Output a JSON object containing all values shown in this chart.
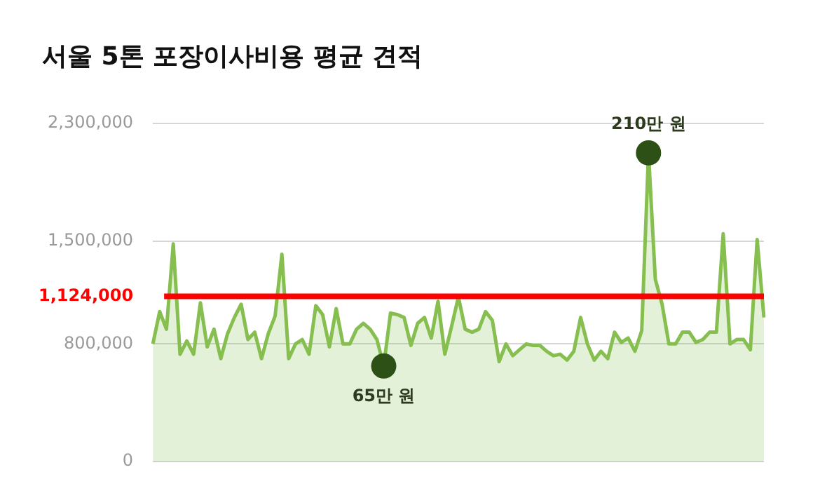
{
  "chart_data": {
    "type": "area",
    "title": "서울 5톤 포장이사비용 평균 견적",
    "categories": [
      null,
      null,
      null,
      null,
      null,
      null,
      null,
      null,
      null,
      null,
      null,
      null,
      null,
      null,
      null,
      null,
      null,
      null,
      null,
      null,
      null,
      null,
      null,
      null,
      null,
      null,
      null,
      null,
      null,
      null,
      null,
      null,
      null,
      null,
      null,
      null,
      null,
      null,
      null,
      null,
      null,
      null,
      null,
      null,
      null,
      null,
      null,
      null,
      null,
      null,
      null,
      null,
      null,
      null,
      null,
      null,
      null,
      null,
      null,
      null,
      null,
      null,
      null,
      null,
      null,
      null,
      null,
      null,
      null,
      null,
      null,
      null,
      null,
      null,
      null,
      null,
      null,
      null,
      null,
      null,
      null,
      null,
      null,
      null,
      null,
      null,
      null,
      null,
      null,
      null,
      null
    ],
    "series": [
      {
        "color": "#86bf50",
        "values": [
          800000,
          1020000,
          900000,
          1480000,
          730000,
          820000,
          730000,
          1080000,
          780000,
          900000,
          700000,
          870000,
          980000,
          1070000,
          830000,
          880000,
          700000,
          870000,
          990000,
          1410000,
          700000,
          800000,
          830000,
          730000,
          1060000,
          1000000,
          780000,
          1040000,
          800000,
          800000,
          900000,
          940000,
          900000,
          830000,
          650000,
          1010000,
          1000000,
          980000,
          790000,
          940000,
          980000,
          840000,
          1090000,
          730000,
          920000,
          1120000,
          900000,
          880000,
          900000,
          1020000,
          960000,
          680000,
          800000,
          720000,
          760000,
          800000,
          790000,
          790000,
          750000,
          720000,
          730000,
          690000,
          750000,
          980000,
          800000,
          690000,
          750000,
          700000,
          880000,
          810000,
          840000,
          750000,
          890000,
          2100000,
          1240000,
          1070000,
          800000,
          800000,
          880000,
          880000,
          810000,
          830000,
          880000,
          880000,
          1550000,
          800000,
          830000,
          830000,
          760000,
          1510000,
          980000
        ]
      }
    ],
    "ylim": [
      0,
      2300000
    ],
    "yticks": [
      0,
      {
        "value": 800000,
        "label": "800,000"
      },
      {
        "value": 1500000,
        "label": "1,500,000"
      },
      {
        "value": 2300000,
        "label": "2,300,000"
      }
    ],
    "ref_lines": [
      {
        "axis": "y",
        "value": 1124000,
        "label": "1,124,000",
        "color": "#ff0000"
      }
    ],
    "annotations": [
      {
        "text": "65만 원",
        "y": 650000
      },
      {
        "text": "210만 원",
        "y": 2100000
      }
    ],
    "grid": "y",
    "legend": false,
    "tick_labels": "y",
    "marker": "none"
  }
}
